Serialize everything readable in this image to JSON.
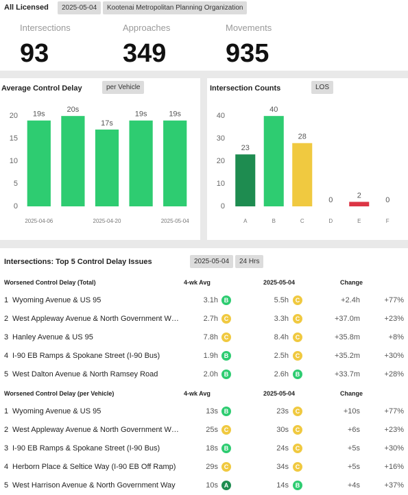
{
  "header": {
    "title": "All Licensed",
    "date": "2025-05-04",
    "organization": "Kootenai Metropolitan Planning Organization"
  },
  "kpis": [
    {
      "label": "Intersections",
      "value": 93
    },
    {
      "label": "Approaches",
      "value": 349
    },
    {
      "label": "Movements",
      "value": 935
    }
  ],
  "chart_data": [
    {
      "type": "bar",
      "title": "Average Control Delay",
      "toggle": "per Vehicle",
      "categories": [
        "2025-04-06",
        null,
        "2025-04-20",
        null,
        "2025-05-04"
      ],
      "values": [
        19,
        20,
        17,
        19,
        19
      ],
      "value_labels": [
        "19s",
        "20s",
        "17s",
        "19s",
        "19s"
      ],
      "color": "#2ecc71",
      "ylim": [
        0,
        22
      ],
      "yticks": [
        0,
        5,
        10,
        15,
        20
      ]
    },
    {
      "type": "bar",
      "title": "Intersection Counts",
      "toggle": "LOS",
      "categories": [
        "A",
        "B",
        "C",
        "D",
        "E",
        "F"
      ],
      "values": [
        23,
        40,
        28,
        0,
        2,
        0
      ],
      "colors": [
        "#1e8c50",
        "#2ecc71",
        "#f0c940",
        null,
        "#dc3545",
        null
      ],
      "ylim": [
        0,
        44
      ],
      "yticks": [
        0,
        10,
        20,
        30,
        40
      ]
    }
  ],
  "table": {
    "title": "Intersections: Top 5 Control Delay Issues",
    "date": "2025-05-04",
    "period": "24 Hrs",
    "grade_colors": {
      "A": "#1e8c50",
      "B": "#2ecc71",
      "C": "#f0c940"
    },
    "sections": [
      {
        "heading": "Worsened Control Delay (Total)",
        "columns": [
          "4-wk Avg",
          "2025-05-04",
          "Change"
        ],
        "rows": [
          {
            "rank": 1,
            "name": "Wyoming Avenue & US 95",
            "avg": "3.1h",
            "avg_grade": "B",
            "current": "5.5h",
            "current_grade": "C",
            "change": "+2.4h",
            "pct": "+77%"
          },
          {
            "rank": 2,
            "name": "West Appleway Avenue & North Government W…",
            "avg": "2.7h",
            "avg_grade": "C",
            "current": "3.3h",
            "current_grade": "C",
            "change": "+37.0m",
            "pct": "+23%"
          },
          {
            "rank": 3,
            "name": "Hanley Avenue & US 95",
            "avg": "7.8h",
            "avg_grade": "C",
            "current": "8.4h",
            "current_grade": "C",
            "change": "+35.8m",
            "pct": "+8%"
          },
          {
            "rank": 4,
            "name": "I-90 EB Ramps & Spokane Street (I-90 Bus)",
            "avg": "1.9h",
            "avg_grade": "B",
            "current": "2.5h",
            "current_grade": "C",
            "change": "+35.2m",
            "pct": "+30%"
          },
          {
            "rank": 5,
            "name": "West Dalton Avenue & North Ramsey Road",
            "avg": "2.0h",
            "avg_grade": "B",
            "current": "2.6h",
            "current_grade": "B",
            "change": "+33.7m",
            "pct": "+28%"
          }
        ]
      },
      {
        "heading": "Worsened Control Delay (per Vehicle)",
        "columns": [
          "4-wk Avg",
          "2025-05-04",
          "Change"
        ],
        "rows": [
          {
            "rank": 1,
            "name": "Wyoming Avenue & US 95",
            "avg": "13s",
            "avg_grade": "B",
            "current": "23s",
            "current_grade": "C",
            "change": "+10s",
            "pct": "+77%"
          },
          {
            "rank": 2,
            "name": "West Appleway Avenue & North Government W…",
            "avg": "25s",
            "avg_grade": "C",
            "current": "30s",
            "current_grade": "C",
            "change": "+6s",
            "pct": "+23%"
          },
          {
            "rank": 3,
            "name": "I-90 EB Ramps & Spokane Street (I-90 Bus)",
            "avg": "18s",
            "avg_grade": "B",
            "current": "24s",
            "current_grade": "C",
            "change": "+5s",
            "pct": "+30%"
          },
          {
            "rank": 4,
            "name": "Herborn Place & Seltice Way (I-90 EB Off Ramp)",
            "avg": "29s",
            "avg_grade": "C",
            "current": "34s",
            "current_grade": "C",
            "change": "+5s",
            "pct": "+16%"
          },
          {
            "rank": 5,
            "name": "West Harrison Avenue & North Government Way",
            "avg": "10s",
            "avg_grade": "A",
            "current": "14s",
            "current_grade": "B",
            "change": "+4s",
            "pct": "+37%"
          }
        ]
      }
    ]
  }
}
